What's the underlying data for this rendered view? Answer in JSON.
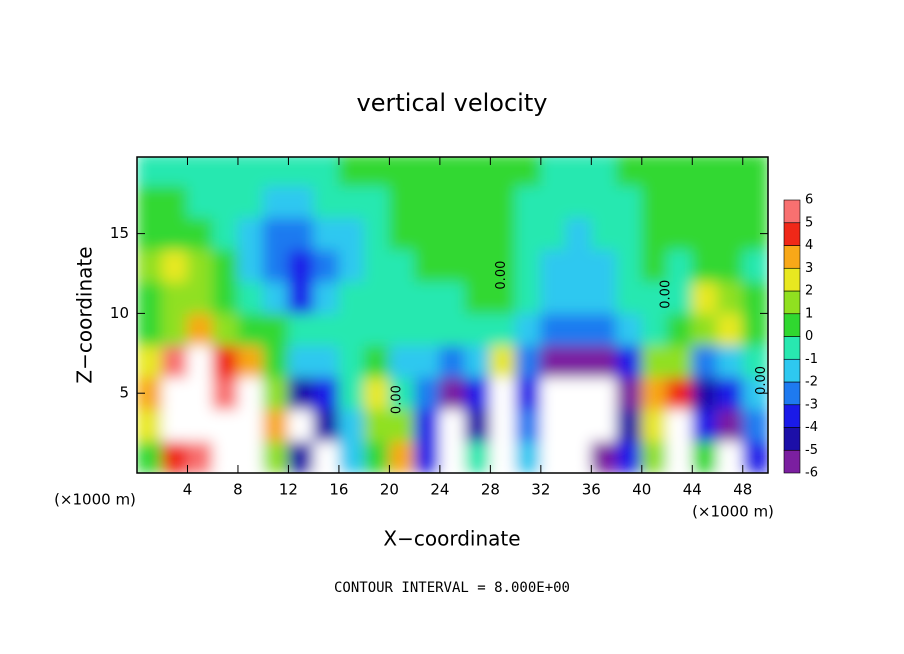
{
  "chart_data": {
    "type": "heatmap",
    "title": "vertical velocity",
    "xlabel": "X−coordinate",
    "ylabel": "Z−coordinate",
    "x_unit_left": "(×1000 m)",
    "x_unit_right": "(×1000 m)",
    "footer": "CONTOUR INTERVAL = 8.000E+00",
    "xlim": [
      0,
      50
    ],
    "ylim": [
      0,
      19.8
    ],
    "xticks": [
      4,
      8,
      12,
      16,
      20,
      24,
      28,
      32,
      36,
      40,
      44,
      48
    ],
    "yticks": [
      5,
      10,
      15
    ],
    "x": [
      1,
      3,
      5,
      7,
      9,
      11,
      13,
      15,
      17,
      19,
      21,
      23,
      25,
      27,
      29,
      31,
      33,
      35,
      37,
      39,
      41,
      43,
      45,
      47,
      49
    ],
    "y": [
      1,
      3,
      5,
      7,
      9,
      11,
      13,
      15,
      17,
      19
    ],
    "z": [
      [
        1,
        5,
        6,
        7,
        8,
        2,
        -4,
        -8,
        -1,
        1,
        4,
        -3,
        -7,
        0,
        8,
        -1,
        -7,
        -8,
        -6,
        -3,
        2,
        7,
        1,
        -7,
        -3
      ],
      [
        3,
        7,
        8,
        7,
        9,
        4,
        -7,
        -4,
        -1,
        2,
        2,
        -3,
        -8,
        -4,
        9,
        -2,
        -8,
        -9,
        -8,
        -4,
        3,
        8,
        -3,
        -6,
        -2
      ],
      [
        4,
        8,
        9,
        6,
        7,
        2,
        -4,
        -3,
        0,
        3,
        0,
        -2,
        -5,
        -3,
        8,
        -3,
        -9,
        -10,
        -8,
        -5,
        4,
        5,
        -4,
        -3,
        -1
      ],
      [
        3,
        6,
        7,
        5,
        4,
        1,
        -1,
        -1,
        0,
        1,
        -1,
        -1,
        -2,
        -1,
        3,
        -2,
        -5,
        -6,
        -5,
        -3,
        2,
        2,
        -2,
        -1,
        0
      ],
      [
        1,
        2,
        4,
        2,
        1,
        1,
        0,
        0,
        0,
        0,
        0,
        0,
        0,
        0,
        0,
        -1,
        -2,
        -2,
        -2,
        -1,
        0,
        1,
        2,
        3,
        1
      ],
      [
        1,
        2,
        2,
        1,
        0,
        -1,
        -3,
        -1,
        0,
        0,
        0,
        0,
        0,
        1,
        1,
        0,
        -1,
        -1,
        -1,
        0,
        0,
        0,
        3,
        2,
        1
      ],
      [
        2,
        3,
        2,
        1,
        -1,
        -2,
        -3,
        -2,
        -1,
        0,
        0,
        1,
        1,
        1,
        1,
        0,
        -1,
        -1,
        -1,
        0,
        1,
        0,
        1,
        1,
        0
      ],
      [
        1,
        1,
        1,
        0,
        -1,
        -2,
        -2,
        -1,
        -1,
        0,
        1,
        1,
        1,
        1,
        1,
        0,
        0,
        -1,
        0,
        0,
        1,
        1,
        1,
        1,
        1
      ],
      [
        1,
        1,
        0,
        0,
        0,
        -1,
        -1,
        0,
        0,
        0,
        1,
        1,
        1,
        1,
        1,
        0,
        0,
        0,
        0,
        0,
        1,
        1,
        1,
        1,
        1
      ],
      [
        0,
        0,
        0,
        0,
        0,
        0,
        0,
        0,
        1,
        1,
        1,
        1,
        1,
        1,
        1,
        1,
        0,
        0,
        0,
        1,
        1,
        1,
        1,
        1,
        1
      ]
    ],
    "levels": [
      -6,
      -5,
      -4,
      -3,
      -2,
      -1,
      0,
      1,
      2,
      3,
      4,
      5,
      6
    ],
    "colors": [
      "#7b1fa0",
      "#1c0fa8",
      "#1a1ae8",
      "#1e7af0",
      "#2ec8f0",
      "#28e8b0",
      "#30d830",
      "#90e020",
      "#e8e820",
      "#f8a818",
      "#f02818",
      "#f87070"
    ],
    "contour_labels": [
      {
        "label": "0.00",
        "x": 20.6,
        "y": 4.6
      },
      {
        "label": "0.00",
        "x": 28.9,
        "y": 12.4
      },
      {
        "label": "0.00",
        "x": 41.9,
        "y": 11.2
      },
      {
        "label": "0.00",
        "x": 49.5,
        "y": 5.8
      }
    ]
  }
}
